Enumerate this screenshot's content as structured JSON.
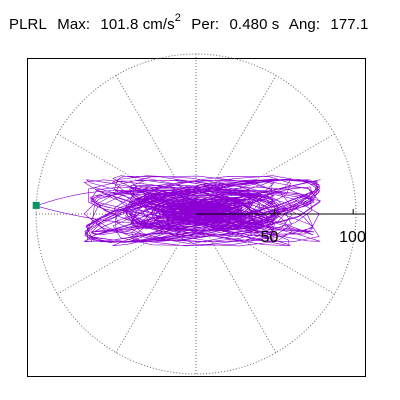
{
  "header": {
    "station": "PLRL",
    "max_label": "Max:",
    "max_value": "101.8 cm/s",
    "max_unit_exp": "2",
    "per_label": "Per:",
    "per_value": "0.480 s",
    "ang_label": "Ang:",
    "ang_value": "177.1"
  },
  "colors": {
    "trace": "#8c00d4",
    "grid": "#666666",
    "marker": "#009966",
    "axis": "#000000"
  },
  "chart_data": {
    "type": "line",
    "title": "",
    "radial_ticks": [
      50,
      100
    ],
    "tick_labels": [
      "50",
      "100"
    ],
    "rlim": [
      0,
      101.8
    ],
    "grid": true,
    "marker": {
      "r": 101.8,
      "angle_deg": 177.1
    }
  }
}
